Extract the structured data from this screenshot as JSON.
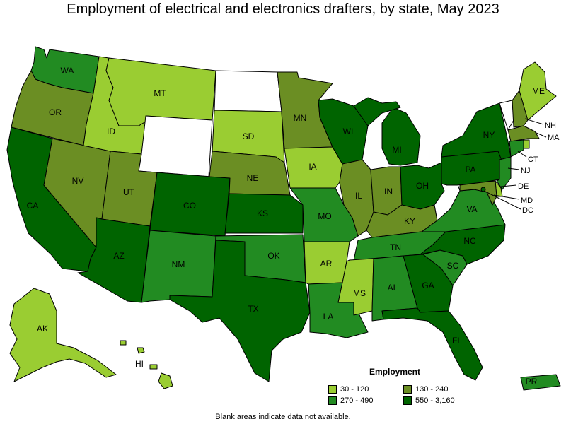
{
  "title": "Employment of electrical and electronics drafters, by state, May 2023",
  "footnote": "Blank areas indicate data not available.",
  "legend": {
    "title": "Employment",
    "items": [
      {
        "label": "30 - 120",
        "color": "#9ACD32"
      },
      {
        "label": "130 - 240",
        "color": "#6B8E23"
      },
      {
        "label": "270 - 490",
        "color": "#228B22"
      },
      {
        "label": "550 - 3,160",
        "color": "#006400"
      }
    ]
  },
  "colors": {
    "c1": "#9ACD32",
    "c2": "#6B8E23",
    "c3": "#228B22",
    "c4": "#006400",
    "none": "#FFFFFF"
  },
  "states": {
    "WA": {
      "label": "WA",
      "bin": "c3"
    },
    "OR": {
      "label": "OR",
      "bin": "c2"
    },
    "CA": {
      "label": "CA",
      "bin": "c4"
    },
    "NV": {
      "label": "NV",
      "bin": "c2"
    },
    "ID": {
      "label": "ID",
      "bin": "c1"
    },
    "MT": {
      "label": "MT",
      "bin": "c1"
    },
    "WY": {
      "label": "",
      "bin": "none"
    },
    "UT": {
      "label": "UT",
      "bin": "c2"
    },
    "AZ": {
      "label": "AZ",
      "bin": "c4"
    },
    "CO": {
      "label": "CO",
      "bin": "c4"
    },
    "NM": {
      "label": "NM",
      "bin": "c3"
    },
    "ND": {
      "label": "",
      "bin": "none"
    },
    "SD": {
      "label": "SD",
      "bin": "c1"
    },
    "NE": {
      "label": "NE",
      "bin": "c2"
    },
    "KS": {
      "label": "KS",
      "bin": "c4"
    },
    "OK": {
      "label": "OK",
      "bin": "c3"
    },
    "TX": {
      "label": "TX",
      "bin": "c4"
    },
    "MN": {
      "label": "MN",
      "bin": "c2"
    },
    "IA": {
      "label": "IA",
      "bin": "c1"
    },
    "MO": {
      "label": "MO",
      "bin": "c3"
    },
    "AR": {
      "label": "AR",
      "bin": "c1"
    },
    "LA": {
      "label": "LA",
      "bin": "c3"
    },
    "WI": {
      "label": "WI",
      "bin": "c4"
    },
    "IL": {
      "label": "IL",
      "bin": "c2"
    },
    "MI": {
      "label": "MI",
      "bin": "c4"
    },
    "IN": {
      "label": "IN",
      "bin": "c2"
    },
    "OH": {
      "label": "OH",
      "bin": "c4"
    },
    "KY": {
      "label": "KY",
      "bin": "c2"
    },
    "TN": {
      "label": "TN",
      "bin": "c3"
    },
    "MS": {
      "label": "MS",
      "bin": "c1"
    },
    "AL": {
      "label": "AL",
      "bin": "c3"
    },
    "GA": {
      "label": "GA",
      "bin": "c4"
    },
    "FL": {
      "label": "FL",
      "bin": "c4"
    },
    "SC": {
      "label": "SC",
      "bin": "c3"
    },
    "NC": {
      "label": "NC",
      "bin": "c4"
    },
    "VA": {
      "label": "VA",
      "bin": "c3"
    },
    "WV": {
      "label": "",
      "bin": "none"
    },
    "PA": {
      "label": "PA",
      "bin": "c4"
    },
    "NY": {
      "label": "NY",
      "bin": "c4"
    },
    "VT": {
      "label": "",
      "bin": "none"
    },
    "NH": {
      "label": "NH",
      "bin": "c2"
    },
    "ME": {
      "label": "ME",
      "bin": "c1"
    },
    "MA": {
      "label": "MA",
      "bin": "c2"
    },
    "RI": {
      "label": "",
      "bin": "c1"
    },
    "CT": {
      "label": "CT",
      "bin": "c3"
    },
    "NJ": {
      "label": "NJ",
      "bin": "c3"
    },
    "DE": {
      "label": "DE",
      "bin": "c1"
    },
    "MD": {
      "label": "MD",
      "bin": "c2"
    },
    "DC": {
      "label": "DC",
      "bin": "c4"
    },
    "AK": {
      "label": "AK",
      "bin": "c1"
    },
    "HI": {
      "label": "HI",
      "bin": "c1"
    },
    "PR": {
      "label": "PR",
      "bin": "c3"
    }
  }
}
